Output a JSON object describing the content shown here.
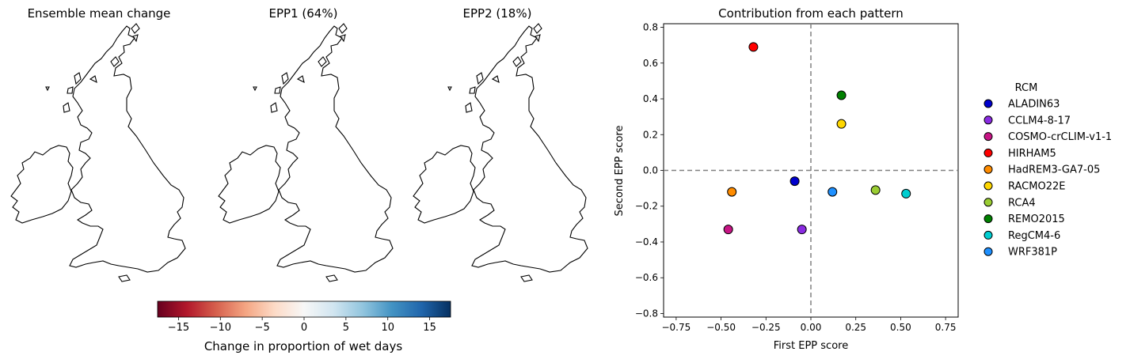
{
  "maps": [
    {
      "title": "Ensemble mean change",
      "shading": "near-zero"
    },
    {
      "title": "EPP1 (64%)",
      "shading": "blue"
    },
    {
      "title": "EPP2 (18%)",
      "shading": "mixed"
    }
  ],
  "colorbar": {
    "label": "Change in proportion of wet days",
    "ticks": [
      -15,
      -10,
      -5,
      0,
      5,
      10,
      15
    ],
    "range": [
      -17.5,
      17.5
    ],
    "colormap": "RdBu",
    "stops": [
      "#67001f",
      "#b2182b",
      "#d6604d",
      "#f4a582",
      "#fddbc7",
      "#f7f7f7",
      "#d1e5f0",
      "#92c5de",
      "#4393c3",
      "#2166ac",
      "#053061"
    ]
  },
  "chart_data": {
    "type": "scatter",
    "title": "Contribution from each pattern",
    "xlabel": "First EPP score",
    "ylabel": "Second EPP score",
    "xlim": [
      -0.82,
      0.82
    ],
    "ylim": [
      -0.82,
      0.82
    ],
    "xticks": [
      -0.75,
      -0.5,
      -0.25,
      0.0,
      0.25,
      0.5,
      0.75
    ],
    "yticks": [
      -0.8,
      -0.6,
      -0.4,
      -0.2,
      0.0,
      0.2,
      0.4,
      0.6,
      0.8
    ],
    "xtick_labels": [
      "−0.75",
      "−0.50",
      "−0.25",
      "0.00",
      "0.25",
      "0.50",
      "0.75"
    ],
    "ytick_labels": [
      "−0.8",
      "−0.6",
      "−0.4",
      "−0.2",
      "0.0",
      "0.2",
      "0.4",
      "0.6",
      "0.8"
    ],
    "reference_lines": {
      "x": 0,
      "y": 0,
      "style": "dashed",
      "color": "#808080"
    },
    "legend": {
      "title": "RCM",
      "placement": "right, outside"
    },
    "series": [
      {
        "name": "ALADIN63",
        "color": "#0000cd",
        "x": -0.09,
        "y": -0.06
      },
      {
        "name": "CCLM4-8-17",
        "color": "#8a2be2",
        "x": -0.05,
        "y": -0.33
      },
      {
        "name": "COSMO-crCLIM-v1-1",
        "color": "#c71585",
        "x": -0.46,
        "y": -0.33
      },
      {
        "name": "HIRHAM5",
        "color": "#ff0000",
        "x": -0.32,
        "y": 0.69
      },
      {
        "name": "HadREM3-GA7-05",
        "color": "#ff8c00",
        "x": -0.44,
        "y": -0.12
      },
      {
        "name": "RACMO22E",
        "color": "#ffd700",
        "x": 0.17,
        "y": 0.26
      },
      {
        "name": "RCA4",
        "color": "#9acd32",
        "x": 0.36,
        "y": -0.11
      },
      {
        "name": "REMO2015",
        "color": "#008000",
        "x": 0.17,
        "y": 0.42
      },
      {
        "name": "RegCM4-6",
        "color": "#00ced1",
        "x": 0.53,
        "y": -0.13
      },
      {
        "name": "WRF381P",
        "color": "#1e90ff",
        "x": 0.12,
        "y": -0.12
      }
    ]
  }
}
